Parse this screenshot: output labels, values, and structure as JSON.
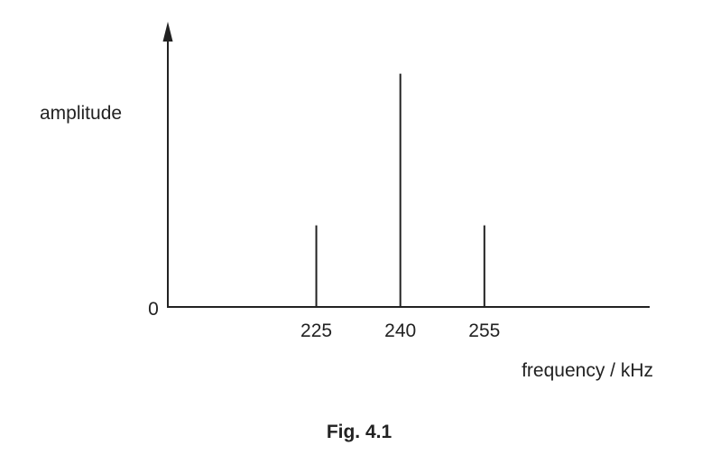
{
  "chart_data": {
    "type": "bar",
    "subtype": "line-spectrum",
    "categories": [
      "225",
      "240",
      "255"
    ],
    "x": [
      225,
      240,
      255
    ],
    "values": [
      0.7,
      2.0,
      0.7
    ],
    "xlabel": "frequency / kHz",
    "ylabel": "amplitude",
    "y_origin_label": "0",
    "xlim": [
      198.5,
      284.5
    ],
    "ylim": [
      0,
      2.4
    ],
    "grid": false,
    "legend": "none",
    "line_color": "#222222"
  },
  "caption": "Fig. 4.1"
}
